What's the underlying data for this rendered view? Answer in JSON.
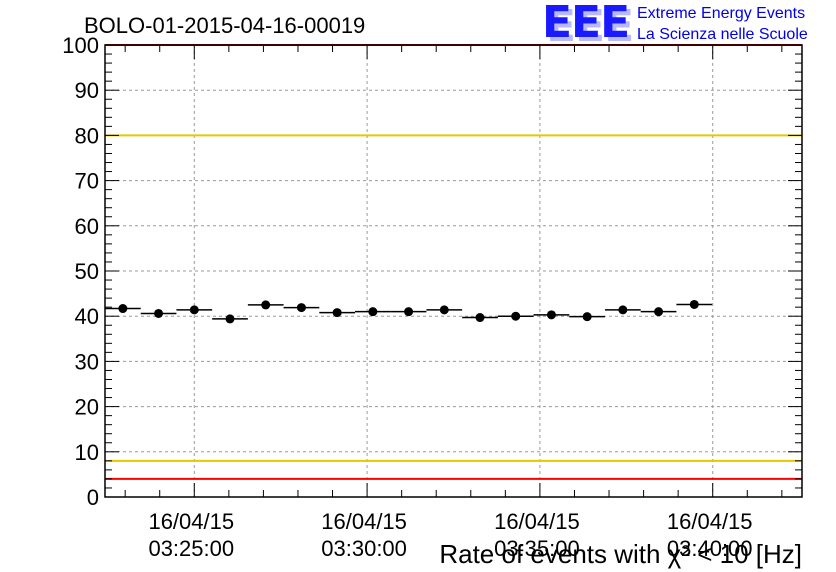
{
  "header": {
    "run_title": "BOLO-01-2015-04-16-00019",
    "logo_text": "EEE",
    "logo_line1": "Extreme Energy Events",
    "logo_line2": "La Scienza nelle Scuole",
    "colors": {
      "logo": "#1a1aff",
      "logo_text": "#0000e6"
    }
  },
  "chart_data": {
    "type": "scatter",
    "title": "BOLO-01-2015-04-16-00019",
    "xlabel": "Rate of events with χ² < 10 [Hz]",
    "ylabel": "",
    "ylim": [
      0,
      100
    ],
    "yticks": [
      0,
      10,
      20,
      30,
      40,
      50,
      60,
      70,
      80,
      90,
      100
    ],
    "y_minor_step": 2,
    "xlim": [
      "2015-04-16 03:22:25",
      "2015-04-16 03:42:35"
    ],
    "xticks": [
      {
        "date": "16/04/15",
        "time": "03:25:00"
      },
      {
        "date": "16/04/15",
        "time": "03:30:00"
      },
      {
        "date": "16/04/15",
        "time": "03:35:00"
      },
      {
        "date": "16/04/15",
        "time": "03:40:00"
      }
    ],
    "x_minor_step_seconds": 60,
    "grid": true,
    "series": [
      {
        "bin_width_seconds": 62,
        "points": [
          {
            "x": "2015-04-16 03:22:56",
            "y": 41.7
          },
          {
            "x": "2015-04-16 03:23:58",
            "y": 40.6
          },
          {
            "x": "2015-04-16 03:25:00",
            "y": 41.4
          },
          {
            "x": "2015-04-16 03:26:02",
            "y": 39.4
          },
          {
            "x": "2015-04-16 03:27:04",
            "y": 42.5
          },
          {
            "x": "2015-04-16 03:28:06",
            "y": 41.9
          },
          {
            "x": "2015-04-16 03:29:08",
            "y": 40.8
          },
          {
            "x": "2015-04-16 03:30:10",
            "y": 41.0
          },
          {
            "x": "2015-04-16 03:31:12",
            "y": 41.0
          },
          {
            "x": "2015-04-16 03:32:14",
            "y": 41.4
          },
          {
            "x": "2015-04-16 03:33:16",
            "y": 39.7
          },
          {
            "x": "2015-04-16 03:34:18",
            "y": 40.0
          },
          {
            "x": "2015-04-16 03:35:20",
            "y": 40.3
          },
          {
            "x": "2015-04-16 03:36:22",
            "y": 39.9
          },
          {
            "x": "2015-04-16 03:37:24",
            "y": 41.4
          },
          {
            "x": "2015-04-16 03:38:26",
            "y": 41.0
          },
          {
            "x": "2015-04-16 03:39:28",
            "y": 42.6
          }
        ]
      }
    ],
    "reference_lines": [
      {
        "y": 100,
        "color": "#ff0000"
      },
      {
        "y": 80,
        "color": "#e6c800"
      },
      {
        "y": 8,
        "color": "#e6c800"
      },
      {
        "y": 4,
        "color": "#ff0000"
      }
    ]
  }
}
